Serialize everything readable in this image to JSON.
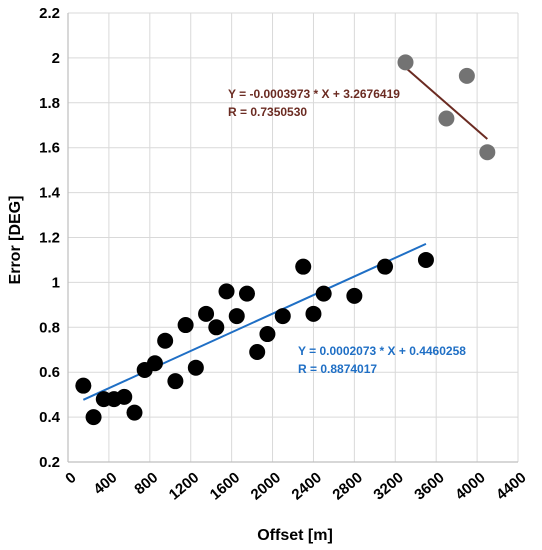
{
  "chart_data": {
    "type": "scatter",
    "title": "",
    "xlabel": "Offset [m]",
    "ylabel": "Error [DEG]",
    "xlim": [
      0,
      4400
    ],
    "ylim": [
      0.2,
      2.2
    ],
    "grid": true,
    "x_ticks": [
      "0",
      "400",
      "800",
      "1200",
      "1600",
      "2000",
      "2400",
      "2800",
      "3200",
      "3600",
      "4000",
      "4400"
    ],
    "y_ticks": [
      "0.2",
      "0.4",
      "0.6",
      "0.8",
      "1",
      "1.2",
      "1.4",
      "1.6",
      "1.8",
      "2",
      "2.2"
    ],
    "series": [
      {
        "color": "#000000",
        "points": [
          [
            150,
            0.54
          ],
          [
            250,
            0.4
          ],
          [
            350,
            0.48
          ],
          [
            450,
            0.48
          ],
          [
            550,
            0.49
          ],
          [
            650,
            0.42
          ],
          [
            750,
            0.61
          ],
          [
            850,
            0.64
          ],
          [
            950,
            0.74
          ],
          [
            1050,
            0.56
          ],
          [
            1150,
            0.81
          ],
          [
            1250,
            0.62
          ],
          [
            1350,
            0.86
          ],
          [
            1450,
            0.8
          ],
          [
            1550,
            0.96
          ],
          [
            1650,
            0.85
          ],
          [
            1750,
            0.95
          ],
          [
            1850,
            0.69
          ],
          [
            1950,
            0.77
          ],
          [
            2100,
            0.85
          ],
          [
            2300,
            1.07
          ],
          [
            2400,
            0.86
          ],
          [
            2500,
            0.95
          ],
          [
            2800,
            0.94
          ],
          [
            3100,
            1.07
          ],
          [
            3500,
            1.1
          ]
        ],
        "fit": {
          "color": "#1f6fc5",
          "x_range": [
            150,
            3500
          ],
          "slope": 0.0002073,
          "intercept": 0.4460258,
          "equation": "Y = 0.0002073 * X + 0.4460258",
          "r": "R = 0.8874017"
        }
      },
      {
        "color": "#737373",
        "points": [
          [
            3300,
            1.98
          ],
          [
            3700,
            1.73
          ],
          [
            3900,
            1.92
          ],
          [
            4100,
            1.58
          ]
        ],
        "fit": {
          "color": "#6b2b22",
          "x_range": [
            3300,
            4100
          ],
          "slope": -0.0003973,
          "intercept": 3.2676419,
          "equation": "Y = -0.0003973 * X + 3.2676419",
          "r": "R = 0.7350530"
        }
      }
    ]
  }
}
